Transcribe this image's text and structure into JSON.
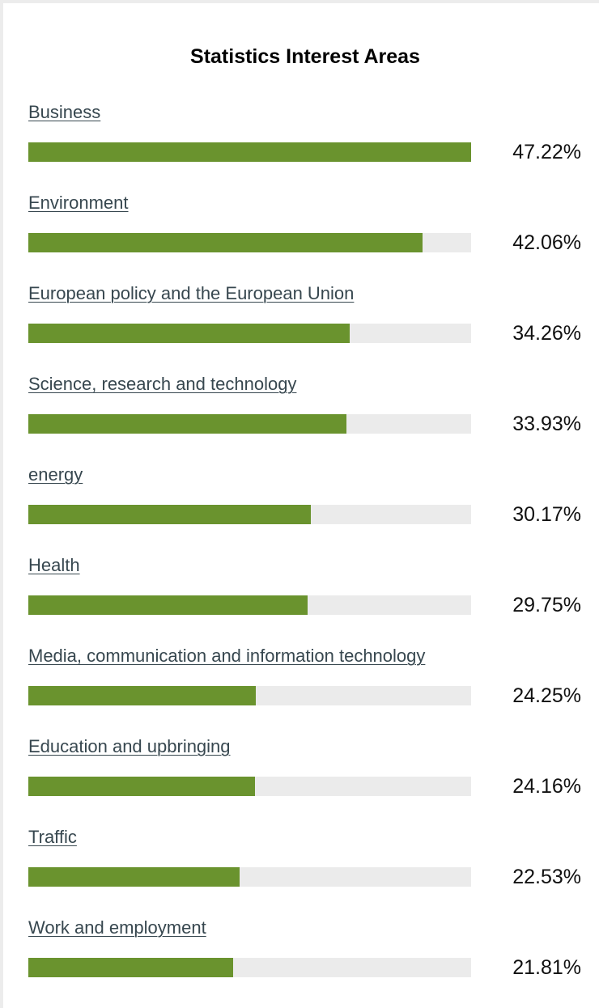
{
  "colors": {
    "bar_fill": "#6a932e",
    "bar_track": "#ebebeb",
    "label_text": "#37474f"
  },
  "chart_data": {
    "type": "bar",
    "orientation": "horizontal",
    "title": "Statistics Interest Areas",
    "categories": [
      "Business",
      "Environment",
      "European policy and the European Union",
      "Science, research and technology",
      "energy",
      "Health",
      "Media, communication and information technology",
      "Education and upbringing",
      "Traffic",
      "Work and employment"
    ],
    "values": [
      47.22,
      42.06,
      34.26,
      33.93,
      30.17,
      29.75,
      24.25,
      24.16,
      22.53,
      21.81
    ],
    "value_labels": [
      "47.22%",
      "42.06%",
      "34.26%",
      "33.93%",
      "30.17%",
      "29.75%",
      "24.25%",
      "24.16%",
      "22.53%",
      "21.81%"
    ],
    "xlim": [
      0,
      47.22
    ],
    "grid": false
  }
}
